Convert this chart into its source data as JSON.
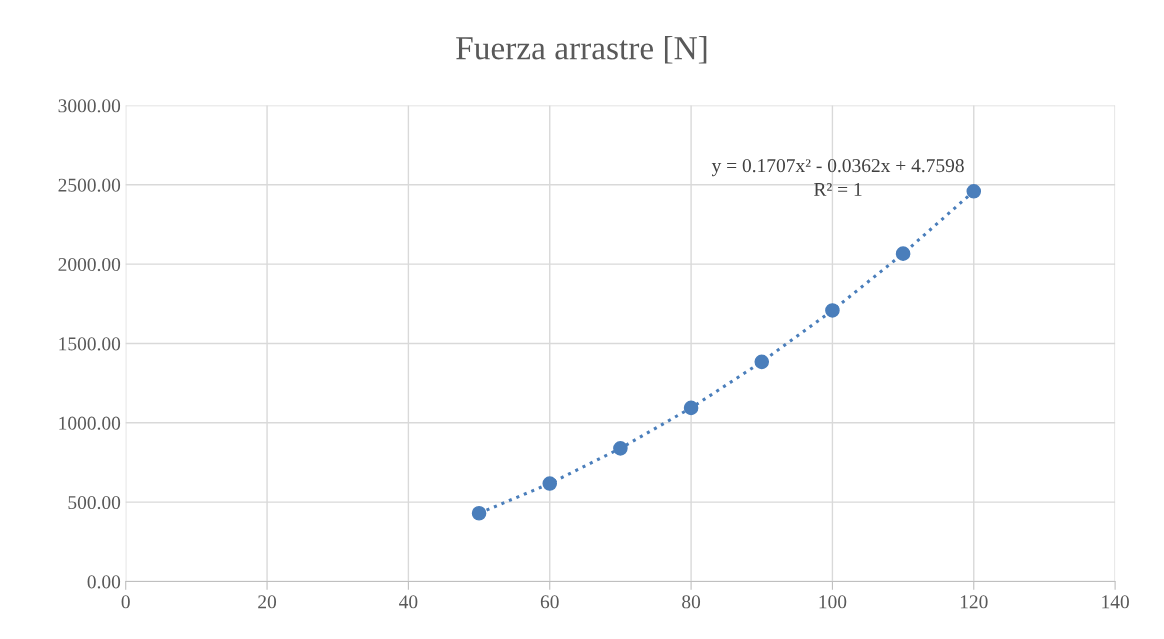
{
  "chart_data": {
    "type": "scatter",
    "title": "Fuerza arrastre [N]",
    "x": [
      50,
      60,
      70,
      80,
      90,
      100,
      110,
      120
    ],
    "series": [
      {
        "color": "#4a7ebb",
        "marker": "circle",
        "values": [
          430,
          617,
          839,
          1094,
          1384,
          1708,
          2066,
          2459
        ]
      },
      {
        "type": "line",
        "color": "#4a7ebb",
        "marker": "none",
        "line_style": "dotted",
        "x": [
          50,
          60,
          70,
          80,
          90,
          100,
          110,
          120
        ],
        "values": [
          430,
          617,
          839,
          1094,
          1384,
          1708,
          2066,
          2459
        ]
      }
    ],
    "annotations": [
      "y = 0.1707x² - 0.0362x + 4.7598",
      "R² = 1"
    ],
    "xlim": [
      0,
      140
    ],
    "xticks": [
      0,
      20,
      40,
      60,
      80,
      100,
      120,
      140
    ],
    "ylim": [
      0,
      3000
    ],
    "yticks": [
      {
        "value": 0,
        "label": "0.00"
      },
      {
        "value": 500,
        "label": "500.00"
      },
      {
        "value": 1000,
        "label": "1000.00"
      },
      {
        "value": 1500,
        "label": "1500.00"
      },
      {
        "value": 2000,
        "label": "2000.00"
      },
      {
        "value": 2500,
        "label": "2500.00"
      },
      {
        "value": 3000,
        "label": "3000.00"
      }
    ],
    "grid": true,
    "legend": false
  }
}
